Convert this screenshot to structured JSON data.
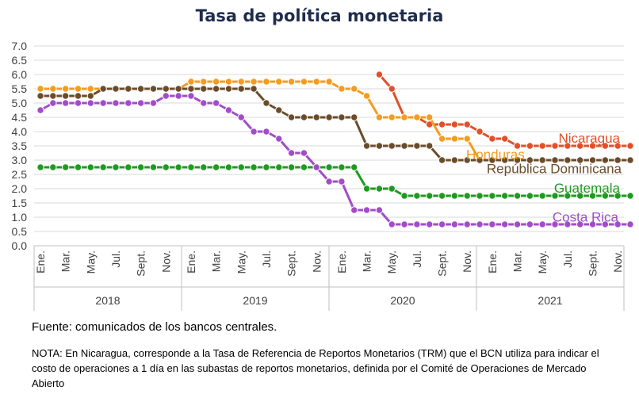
{
  "chart_data": {
    "type": "line",
    "title": "Tasa de política monetaria",
    "xlabel": "",
    "ylabel": "",
    "ylim": [
      0,
      7
    ],
    "y_ticks": [
      "0.0",
      "0.5",
      "1.0",
      "1.5",
      "2.0",
      "2.5",
      "3.0",
      "3.5",
      "4.0",
      "4.5",
      "5.0",
      "5.5",
      "6.0",
      "6.5",
      "7.0"
    ],
    "grid": true,
    "x_tick_labels": [
      "Ene.",
      "Mar.",
      "May.",
      "Jul.",
      "Sept.",
      "Nov.",
      "Ene.",
      "Mar.",
      "May.",
      "Jul.",
      "Sept.",
      "Nov.",
      "Ene.",
      "Mar.",
      "May.",
      "Jul.",
      "Sept.",
      "Nov.",
      "Ene.",
      "Mar.",
      "May.",
      "Jul.",
      "Sept.",
      "Nov."
    ],
    "years": [
      "2018",
      "2019",
      "2020",
      "2021"
    ],
    "series": [
      {
        "name": "Nicaragua",
        "color": "#e0502a",
        "start": 27,
        "values": [
          6.0,
          5.5,
          4.5,
          4.5,
          4.25,
          4.25,
          4.25,
          4.25,
          4.0,
          3.75,
          3.75,
          3.5,
          3.5,
          3.5,
          3.5,
          3.5,
          3.5,
          3.5,
          3.5,
          3.5,
          3.5
        ]
      },
      {
        "name": "Honduras",
        "color": "#f39c1f",
        "start": 0,
        "values": [
          5.5,
          5.5,
          5.5,
          5.5,
          5.5,
          5.5,
          5.5,
          5.5,
          5.5,
          5.5,
          5.5,
          5.5,
          5.75,
          5.75,
          5.75,
          5.75,
          5.75,
          5.75,
          5.75,
          5.75,
          5.75,
          5.75,
          5.75,
          5.75,
          5.5,
          5.5,
          5.25,
          4.5,
          4.5,
          4.5,
          4.5,
          4.5,
          3.75,
          3.75,
          3.75,
          3.0,
          3.0,
          3.0,
          3.0,
          3.0,
          3.0,
          3.0,
          3.0,
          3.0,
          3.0,
          3.0,
          3.0,
          3.0
        ]
      },
      {
        "name": "República Dominicana",
        "color": "#6b4c2a",
        "start": 0,
        "values": [
          5.25,
          5.25,
          5.25,
          5.25,
          5.25,
          5.5,
          5.5,
          5.5,
          5.5,
          5.5,
          5.5,
          5.5,
          5.5,
          5.5,
          5.5,
          5.5,
          5.5,
          5.5,
          5.0,
          4.75,
          4.5,
          4.5,
          4.5,
          4.5,
          4.5,
          4.5,
          3.5,
          3.5,
          3.5,
          3.5,
          3.5,
          3.5,
          3.0,
          3.0,
          3.0,
          3.0,
          3.0,
          3.0,
          3.0,
          3.0,
          3.0,
          3.0,
          3.0,
          3.0,
          3.0,
          3.0,
          3.0,
          3.0
        ]
      },
      {
        "name": "Guatemala",
        "color": "#1f9a1f",
        "start": 0,
        "values": [
          2.75,
          2.75,
          2.75,
          2.75,
          2.75,
          2.75,
          2.75,
          2.75,
          2.75,
          2.75,
          2.75,
          2.75,
          2.75,
          2.75,
          2.75,
          2.75,
          2.75,
          2.75,
          2.75,
          2.75,
          2.75,
          2.75,
          2.75,
          2.75,
          2.75,
          2.75,
          2.0,
          2.0,
          2.0,
          1.75,
          1.75,
          1.75,
          1.75,
          1.75,
          1.75,
          1.75,
          1.75,
          1.75,
          1.75,
          1.75,
          1.75,
          1.75,
          1.75,
          1.75,
          1.75,
          1.75,
          1.75,
          1.75
        ]
      },
      {
        "name": "Costa Rica",
        "color": "#a24cc8",
        "start": 0,
        "values": [
          4.75,
          5.0,
          5.0,
          5.0,
          5.0,
          5.0,
          5.0,
          5.0,
          5.0,
          5.0,
          5.25,
          5.25,
          5.25,
          5.0,
          5.0,
          4.75,
          4.5,
          4.0,
          4.0,
          3.75,
          3.25,
          3.25,
          2.75,
          2.25,
          2.25,
          1.25,
          1.25,
          1.25,
          0.75,
          0.75,
          0.75,
          0.75,
          0.75,
          0.75,
          0.75,
          0.75,
          0.75,
          0.75,
          0.75,
          0.75,
          0.75,
          0.75,
          0.75,
          0.75,
          0.75,
          0.75,
          0.75,
          0.75
        ]
      }
    ]
  },
  "footer": {
    "source": "Fuente: comunicados de los bancos centrales.",
    "note": "NOTA: En Nicaragua, corresponde a la Tasa de Referencia de Reportos Monetarios (TRM) que el BCN utiliza para indicar el costo de operaciones a 1 día en las subastas de reportos monetarios, definida por el Comité de Operaciones de Mercado Abierto"
  }
}
